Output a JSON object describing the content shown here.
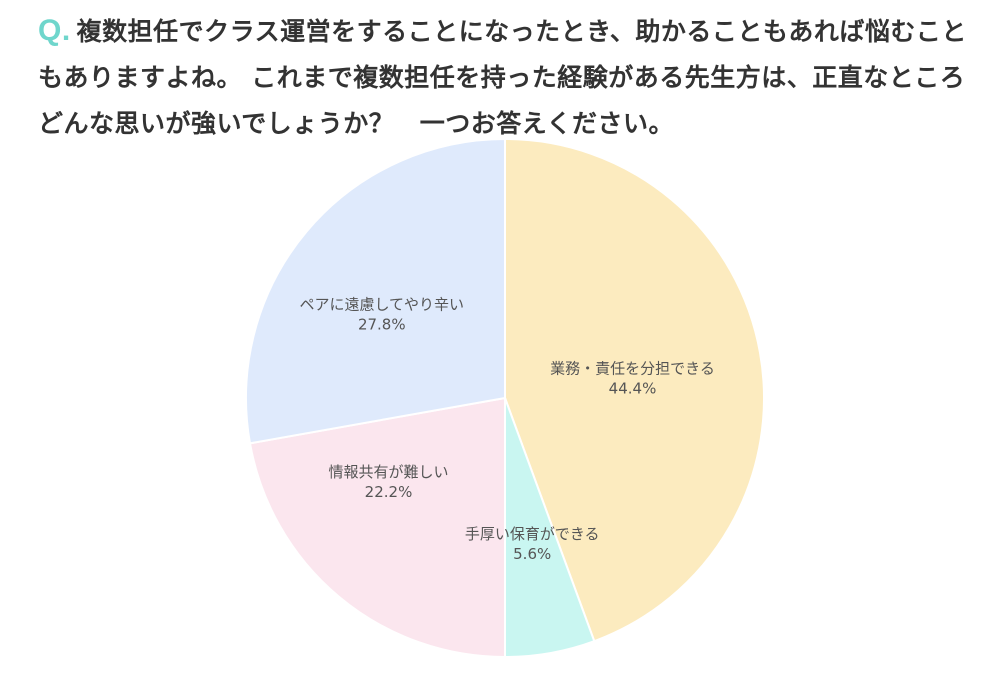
{
  "question": {
    "mark": "Q.",
    "text": "複数担任でクラス運営をすることになったとき、助かることもあれば悩むこともありますよね。 これまで複数担任を持った経験がある先生方は、正直なところどんな思いが強いでしょうか？　一つお答えください。"
  },
  "chart_data": {
    "type": "pie",
    "title": "",
    "slices": [
      {
        "label": "業務・責任を分担できる",
        "value": 44.4,
        "value_label": "44.4%",
        "color": "#fcebbf"
      },
      {
        "label": "手厚い保育ができる",
        "value": 5.6,
        "value_label": "5.6%",
        "color": "#c9f6f1"
      },
      {
        "label": "情報共有が難しい",
        "value": 22.2,
        "value_label": "22.2%",
        "color": "#fbe6ee"
      },
      {
        "label": "ペアに遠慮してやり辛い",
        "value": 27.8,
        "value_label": "27.8%",
        "color": "#dfeafc"
      }
    ],
    "start_angle": "12 o'clock",
    "direction": "clockwise"
  }
}
